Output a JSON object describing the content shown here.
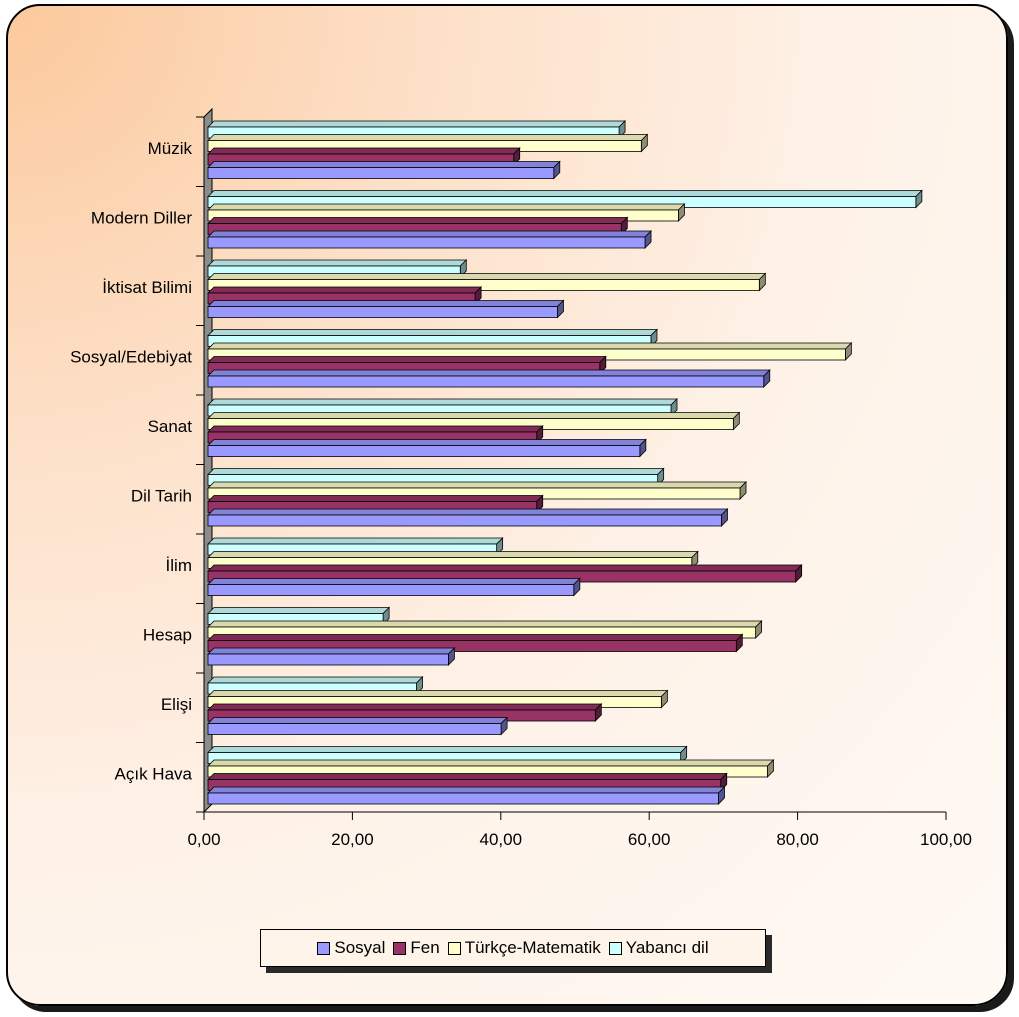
{
  "chart_data": {
    "type": "bar",
    "orientation": "horizontal",
    "style": "3d",
    "title": "",
    "xlabel": "",
    "ylabel": "",
    "xlim": [
      0,
      100
    ],
    "x_ticks": [
      "0,00",
      "20,00",
      "40,00",
      "60,00",
      "80,00",
      "100,00"
    ],
    "grid": false,
    "legend_position": "bottom",
    "categories": [
      "Açık Hava",
      "Elişi",
      "Hesap",
      "İlim",
      "Dil Tarih",
      "Sanat",
      "Sosyal/Edebiyat",
      "İktisat Bilimi",
      "Modern Diller",
      "Müzik"
    ],
    "series": [
      {
        "name": "Sosyal",
        "color": "#9999ff",
        "values": [
          68.8,
          39.5,
          32.4,
          49.3,
          69.2,
          58.2,
          74.9,
          47.1,
          58.9,
          46.6
        ]
      },
      {
        "name": "Fen",
        "color": "#993366",
        "values": [
          69.1,
          52.2,
          71.2,
          79.2,
          44.3,
          44.3,
          52.8,
          36.0,
          55.7,
          41.2
        ]
      },
      {
        "name": "Türkçe-Matematik",
        "color": "#ffffcc",
        "values": [
          75.4,
          61.1,
          73.8,
          65.2,
          71.7,
          70.8,
          85.9,
          74.3,
          63.4,
          58.4
        ]
      },
      {
        "name": "Yabancı dil",
        "color": "#ccffff",
        "values": [
          63.7,
          28.1,
          23.6,
          38.9,
          60.6,
          62.4,
          59.7,
          34.0,
          95.4,
          55.4
        ]
      }
    ]
  }
}
